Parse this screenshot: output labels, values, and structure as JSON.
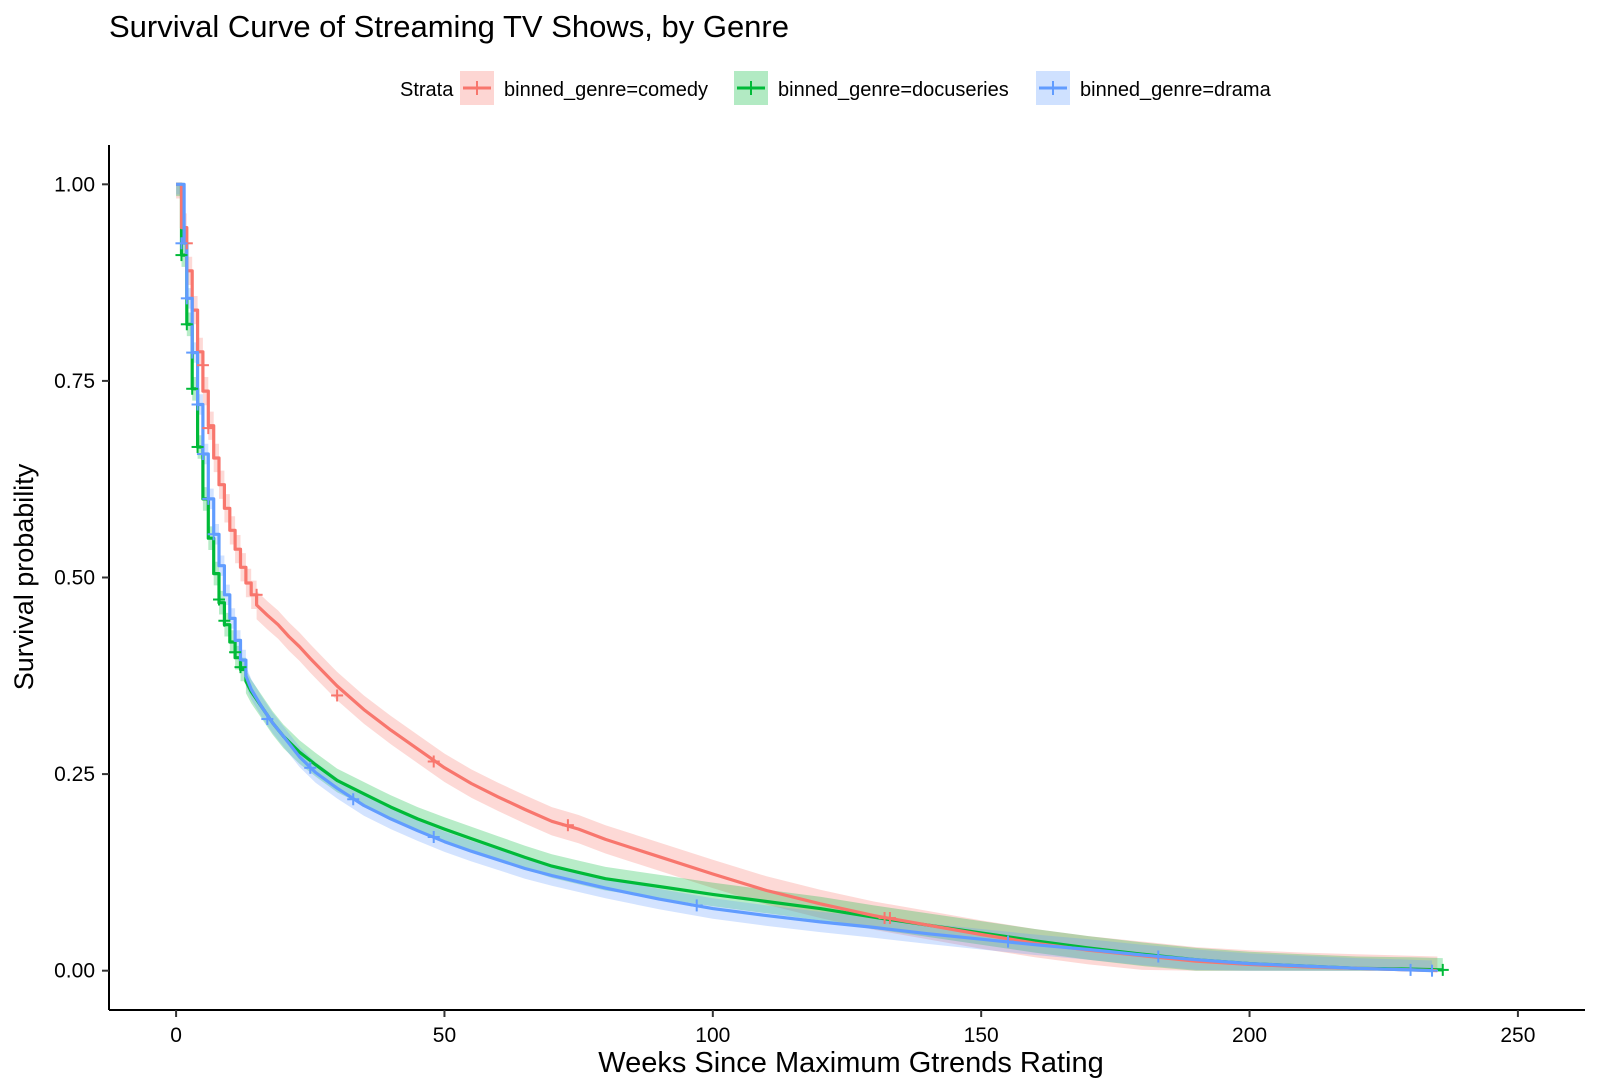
{
  "chart_data": {
    "type": "line",
    "title": "Survival Curve of Streaming TV Shows, by Genre",
    "xlabel": "Weeks Since Maximum Gtrends Rating",
    "ylabel": "Survival probability",
    "xlim": [
      -12.5,
      262.5
    ],
    "ylim": [
      -0.05,
      1.05
    ],
    "x_ticks": [
      0,
      50,
      100,
      150,
      200,
      250
    ],
    "x_tick_labels": [
      "0",
      "50",
      "100",
      "150",
      "200",
      "250"
    ],
    "y_ticks": [
      0,
      0.25,
      0.5,
      0.75,
      1.0
    ],
    "y_tick_labels": [
      "0.00",
      "0.25",
      "0.50",
      "0.75",
      "1.00"
    ],
    "grid": false,
    "legend": {
      "title": "Strata",
      "position": "top"
    },
    "series": [
      {
        "name": "binned_genre=comedy",
        "color": "#F8766D",
        "points": [
          [
            0,
            1
          ],
          [
            1,
            1
          ],
          [
            1,
            0.945
          ],
          [
            2,
            0.945
          ],
          [
            2,
            0.89
          ],
          [
            3,
            0.89
          ],
          [
            3,
            0.84
          ],
          [
            4,
            0.84
          ],
          [
            4,
            0.787
          ],
          [
            5,
            0.787
          ],
          [
            5,
            0.737
          ],
          [
            6,
            0.737
          ],
          [
            6,
            0.693
          ],
          [
            7,
            0.693
          ],
          [
            7,
            0.652
          ],
          [
            8,
            0.652
          ],
          [
            8,
            0.618
          ],
          [
            9,
            0.618
          ],
          [
            9,
            0.588
          ],
          [
            10,
            0.588
          ],
          [
            10,
            0.56
          ],
          [
            11,
            0.56
          ],
          [
            11,
            0.536
          ],
          [
            12,
            0.536
          ],
          [
            12,
            0.513
          ],
          [
            13,
            0.513
          ],
          [
            13,
            0.493
          ],
          [
            14,
            0.493
          ],
          [
            14,
            0.478
          ],
          [
            15,
            0.478
          ],
          [
            15,
            0.465
          ],
          [
            17,
            0.452
          ],
          [
            19,
            0.44
          ],
          [
            21,
            0.425
          ],
          [
            23,
            0.412
          ],
          [
            25,
            0.397
          ],
          [
            27,
            0.383
          ],
          [
            30,
            0.362
          ],
          [
            35,
            0.332
          ],
          [
            40,
            0.306
          ],
          [
            45,
            0.282
          ],
          [
            50,
            0.258
          ],
          [
            55,
            0.238
          ],
          [
            60,
            0.221
          ],
          [
            65,
            0.205
          ],
          [
            70,
            0.19
          ],
          [
            75,
            0.18
          ],
          [
            80,
            0.167
          ],
          [
            90,
            0.145
          ],
          [
            100,
            0.123
          ],
          [
            110,
            0.102
          ],
          [
            120,
            0.085
          ],
          [
            130,
            0.07
          ],
          [
            140,
            0.058
          ],
          [
            150,
            0.046
          ],
          [
            160,
            0.035
          ],
          [
            170,
            0.026
          ],
          [
            180,
            0.019
          ],
          [
            190,
            0.012
          ],
          [
            200,
            0.008
          ],
          [
            210,
            0.005
          ],
          [
            220,
            0.003
          ],
          [
            230,
            0.001
          ],
          [
            235,
            0.0
          ]
        ],
        "ci_halfwidth": 0.018,
        "censor_marks": [
          [
            2,
            0.925
          ],
          [
            5,
            0.77
          ],
          [
            6,
            0.69
          ],
          [
            15,
            0.478
          ],
          [
            30,
            0.35
          ],
          [
            48,
            0.266
          ],
          [
            73,
            0.185
          ],
          [
            132,
            0.067
          ],
          [
            133,
            0.067
          ]
        ]
      },
      {
        "name": "binned_genre=docuseries",
        "color": "#00BA38",
        "points": [
          [
            0,
            1
          ],
          [
            1,
            1
          ],
          [
            1,
            0.91
          ],
          [
            2,
            0.91
          ],
          [
            2,
            0.822
          ],
          [
            3,
            0.822
          ],
          [
            3,
            0.74
          ],
          [
            4,
            0.74
          ],
          [
            4,
            0.666
          ],
          [
            5,
            0.666
          ],
          [
            5,
            0.6
          ],
          [
            6,
            0.6
          ],
          [
            6,
            0.55
          ],
          [
            7,
            0.55
          ],
          [
            7,
            0.505
          ],
          [
            8,
            0.505
          ],
          [
            8,
            0.468
          ],
          [
            9,
            0.468
          ],
          [
            9,
            0.44
          ],
          [
            10,
            0.44
          ],
          [
            10,
            0.418
          ],
          [
            11,
            0.418
          ],
          [
            11,
            0.398
          ],
          [
            12,
            0.398
          ],
          [
            12,
            0.383
          ],
          [
            13,
            0.383
          ],
          [
            13,
            0.368
          ],
          [
            14,
            0.355
          ],
          [
            16,
            0.335
          ],
          [
            18,
            0.315
          ],
          [
            20,
            0.298
          ],
          [
            23,
            0.278
          ],
          [
            26,
            0.262
          ],
          [
            30,
            0.242
          ],
          [
            35,
            0.225
          ],
          [
            40,
            0.208
          ],
          [
            45,
            0.193
          ],
          [
            50,
            0.18
          ],
          [
            55,
            0.168
          ],
          [
            60,
            0.156
          ],
          [
            65,
            0.144
          ],
          [
            70,
            0.133
          ],
          [
            75,
            0.125
          ],
          [
            80,
            0.117
          ],
          [
            90,
            0.107
          ],
          [
            100,
            0.097
          ],
          [
            110,
            0.088
          ],
          [
            120,
            0.079
          ],
          [
            130,
            0.068
          ],
          [
            140,
            0.058
          ],
          [
            150,
            0.048
          ],
          [
            160,
            0.038
          ],
          [
            170,
            0.029
          ],
          [
            180,
            0.021
          ],
          [
            190,
            0.014
          ],
          [
            200,
            0.009
          ],
          [
            210,
            0.006
          ],
          [
            220,
            0.003
          ],
          [
            230,
            0.002
          ],
          [
            236,
            0.001
          ]
        ],
        "ci_halfwidth": 0.015,
        "censor_marks": [
          [
            1,
            0.91
          ],
          [
            2,
            0.822
          ],
          [
            3,
            0.74
          ],
          [
            4,
            0.666
          ],
          [
            8,
            0.472
          ],
          [
            9,
            0.445
          ],
          [
            11,
            0.405
          ],
          [
            12,
            0.386
          ],
          [
            236,
            0.001
          ]
        ]
      },
      {
        "name": "binned_genre=drama",
        "color": "#619CFF",
        "points": [
          [
            0,
            1
          ],
          [
            1.5,
            1
          ],
          [
            1.5,
            0.925
          ],
          [
            2,
            0.925
          ],
          [
            2,
            0.855
          ],
          [
            3,
            0.855
          ],
          [
            3,
            0.786
          ],
          [
            4,
            0.786
          ],
          [
            4,
            0.72
          ],
          [
            5,
            0.72
          ],
          [
            5,
            0.657
          ],
          [
            6,
            0.657
          ],
          [
            6,
            0.6
          ],
          [
            7,
            0.6
          ],
          [
            7,
            0.555
          ],
          [
            8,
            0.555
          ],
          [
            8,
            0.515
          ],
          [
            9,
            0.515
          ],
          [
            9,
            0.478
          ],
          [
            10,
            0.478
          ],
          [
            10,
            0.448
          ],
          [
            11,
            0.448
          ],
          [
            11,
            0.42
          ],
          [
            12,
            0.42
          ],
          [
            12,
            0.395
          ],
          [
            13,
            0.395
          ],
          [
            13,
            0.375
          ],
          [
            14,
            0.358
          ],
          [
            16,
            0.335
          ],
          [
            18,
            0.315
          ],
          [
            20,
            0.298
          ],
          [
            23,
            0.272
          ],
          [
            26,
            0.252
          ],
          [
            30,
            0.232
          ],
          [
            35,
            0.21
          ],
          [
            40,
            0.193
          ],
          [
            45,
            0.178
          ],
          [
            50,
            0.164
          ],
          [
            55,
            0.152
          ],
          [
            60,
            0.141
          ],
          [
            65,
            0.13
          ],
          [
            70,
            0.121
          ],
          [
            75,
            0.113
          ],
          [
            80,
            0.105
          ],
          [
            90,
            0.091
          ],
          [
            100,
            0.079
          ],
          [
            110,
            0.07
          ],
          [
            120,
            0.062
          ],
          [
            130,
            0.055
          ],
          [
            140,
            0.047
          ],
          [
            150,
            0.04
          ],
          [
            160,
            0.033
          ],
          [
            170,
            0.027
          ],
          [
            180,
            0.02
          ],
          [
            190,
            0.014
          ],
          [
            200,
            0.009
          ],
          [
            210,
            0.006
          ],
          [
            220,
            0.003
          ],
          [
            230,
            0.001
          ],
          [
            234,
            0.0
          ]
        ],
        "ci_halfwidth": 0.013,
        "censor_marks": [
          [
            1,
            0.925
          ],
          [
            2,
            0.855
          ],
          [
            3,
            0.786
          ],
          [
            4,
            0.72
          ],
          [
            5,
            0.657
          ],
          [
            6,
            0.6
          ],
          [
            7,
            0.555
          ],
          [
            17,
            0.32
          ],
          [
            25,
            0.258
          ],
          [
            33,
            0.218
          ],
          [
            48,
            0.17
          ],
          [
            97,
            0.083
          ],
          [
            155,
            0.037
          ],
          [
            183,
            0.018
          ],
          [
            230,
            0.001
          ],
          [
            234,
            0.0
          ]
        ]
      }
    ]
  }
}
